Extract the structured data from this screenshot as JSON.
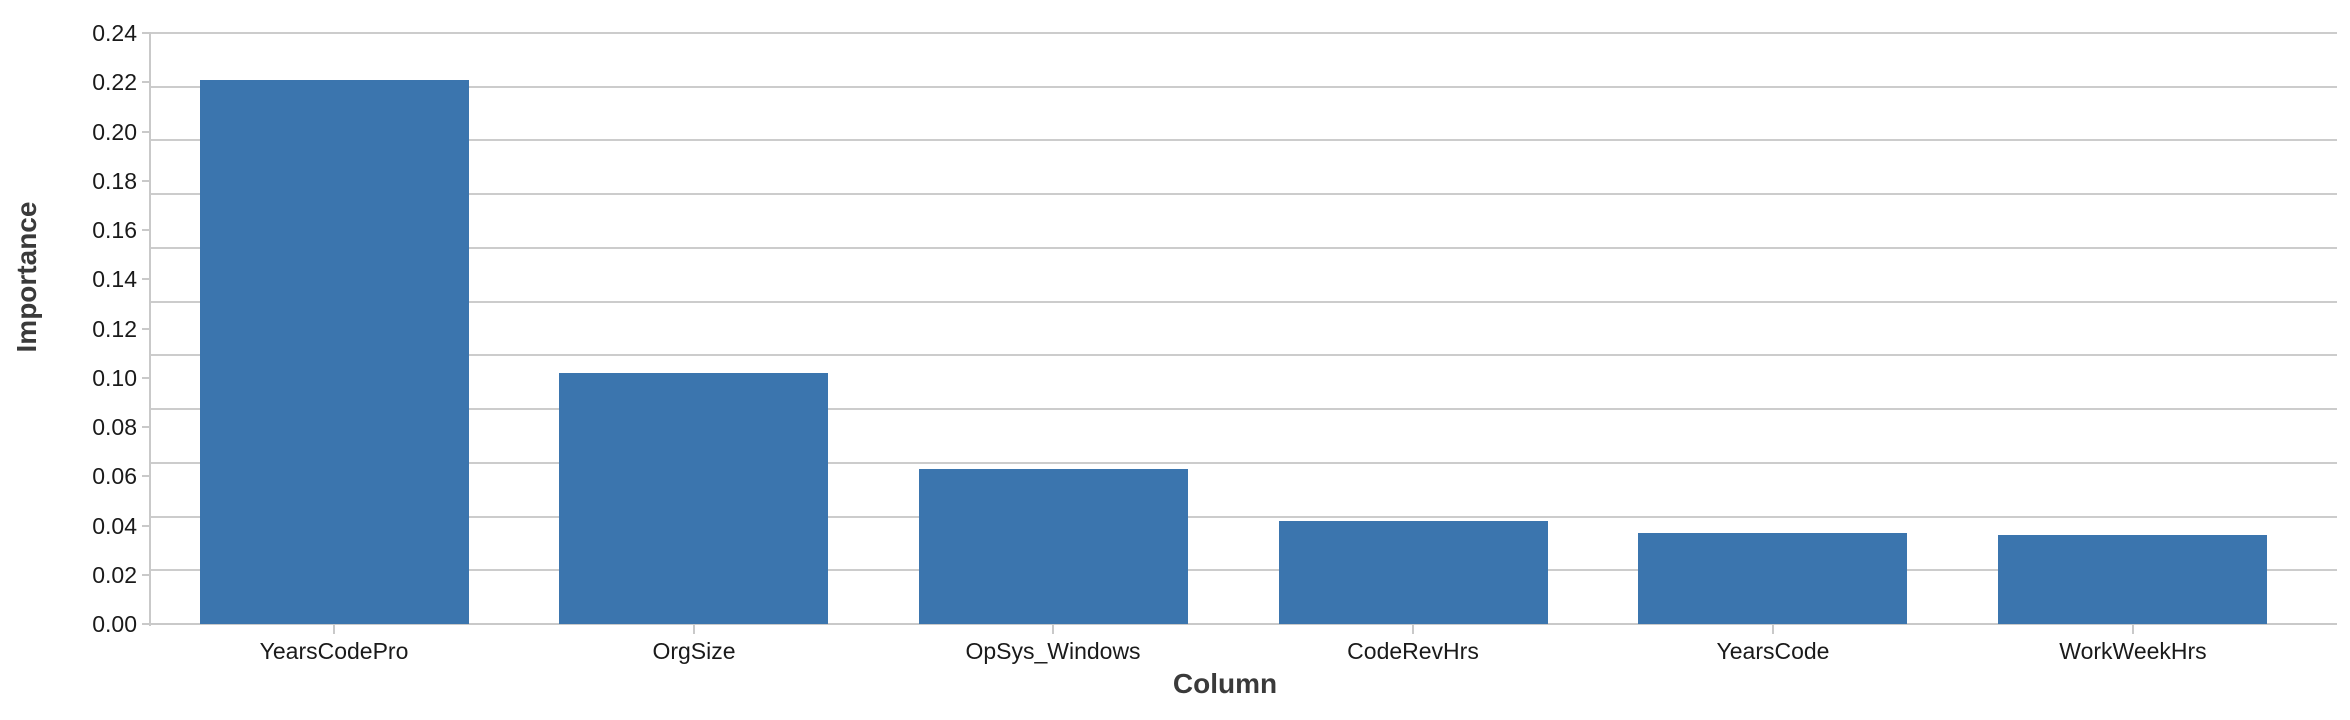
{
  "chart_data": {
    "type": "bar",
    "title": "",
    "xlabel": "Column",
    "ylabel": "Importance",
    "categories": [
      "YearsCodePro",
      "OrgSize",
      "OpSys_Windows",
      "CodeRevHrs",
      "YearsCode",
      "WorkWeekHrs"
    ],
    "values": [
      0.221,
      0.102,
      0.063,
      0.042,
      0.037,
      0.036
    ],
    "ylim": [
      0,
      0.24
    ],
    "ytick_step": 0.02,
    "ytick_labels": [
      "0.00",
      "0.02",
      "0.04",
      "0.06",
      "0.08",
      "0.10",
      "0.12",
      "0.14",
      "0.16",
      "0.18",
      "0.20",
      "0.22",
      "0.24"
    ],
    "grid": true,
    "gridline_divisions": 11,
    "legend_position": "none",
    "bar_color": "#3B75AE",
    "gridline_color": "#cccccc",
    "axis_line_color": "#c9c9c9",
    "tick_label_color": "#1a1a1a",
    "axis_title_color": "#3a3a3a",
    "background_color": "#ffffff"
  }
}
